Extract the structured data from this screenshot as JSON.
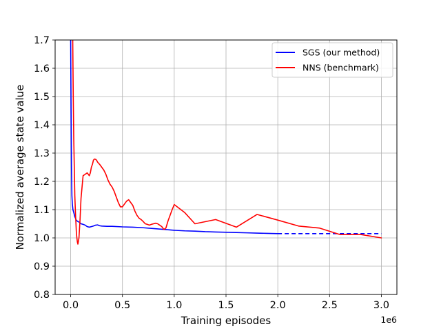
{
  "chart_data": {
    "type": "line",
    "xlabel": "Training episodes",
    "ylabel": "Normalized average state value",
    "x_offset_label": "1e6",
    "xlim": [
      -150000,
      3150000
    ],
    "ylim": [
      0.8,
      1.7
    ],
    "xticks": [
      0,
      500000,
      1000000,
      1500000,
      2000000,
      2500000,
      3000000
    ],
    "xtick_labels": [
      "0.0",
      "0.5",
      "1.0",
      "1.5",
      "2.0",
      "2.5",
      "3.0"
    ],
    "yticks": [
      0.8,
      0.9,
      1.0,
      1.1,
      1.2,
      1.3,
      1.4,
      1.5,
      1.6,
      1.7
    ],
    "ytick_labels": [
      "0.8",
      "0.9",
      "1.0",
      "1.1",
      "1.2",
      "1.3",
      "1.4",
      "1.5",
      "1.6",
      "1.7"
    ],
    "grid": true,
    "legend_position": "top-right",
    "series": [
      {
        "name": "SGS (our method)",
        "color": "#0000ff",
        "x": [
          0,
          4000,
          8000,
          12000,
          16000,
          22000,
          30000,
          40000,
          55000,
          70000,
          85000,
          100000,
          120000,
          140000,
          160000,
          180000,
          200000,
          220000,
          240000,
          260000,
          280000,
          300000,
          350000,
          400000,
          500000,
          600000,
          700000,
          800000,
          900000,
          1000000,
          1100000,
          1200000,
          1300000,
          1400000,
          1500000,
          1600000,
          1700000,
          1800000,
          1900000,
          2000000
        ],
        "y": [
          1.7,
          1.45,
          1.25,
          1.15,
          1.12,
          1.1,
          1.09,
          1.075,
          1.062,
          1.058,
          1.055,
          1.05,
          1.048,
          1.045,
          1.04,
          1.038,
          1.04,
          1.042,
          1.045,
          1.046,
          1.043,
          1.042,
          1.041,
          1.041,
          1.039,
          1.038,
          1.036,
          1.033,
          1.03,
          1.027,
          1.025,
          1.024,
          1.022,
          1.021,
          1.02,
          1.019,
          1.018,
          1.017,
          1.016,
          1.015
        ]
      },
      {
        "name": "SGS (our method)",
        "color": "#0000ff",
        "dashed": true,
        "x": [
          2000000,
          2500000,
          3000000
        ],
        "y": [
          1.015,
          1.015,
          1.015
        ]
      },
      {
        "name": "NNS (benchmark)",
        "color": "#ff0000",
        "x": [
          20000,
          25000,
          30000,
          35000,
          40000,
          45000,
          50000,
          55000,
          60000,
          65000,
          70000,
          80000,
          90000,
          100000,
          110000,
          120000,
          140000,
          160000,
          180000,
          190000,
          200000,
          210000,
          220000,
          230000,
          240000,
          250000,
          260000,
          280000,
          300000,
          320000,
          340000,
          360000,
          380000,
          400000,
          420000,
          440000,
          460000,
          480000,
          500000,
          520000,
          540000,
          560000,
          580000,
          600000,
          620000,
          640000,
          660000,
          680000,
          700000,
          720000,
          740000,
          760000,
          780000,
          800000,
          820000,
          840000,
          860000,
          880000,
          900000,
          920000,
          940000,
          960000,
          980000,
          1000000,
          1100000,
          1200000,
          1400000,
          1600000,
          1800000,
          2000000,
          2200000,
          2400000,
          2600000,
          2800000,
          3000000
        ],
        "y": [
          1.7,
          1.5,
          1.35,
          1.25,
          1.15,
          1.1,
          1.06,
          1.02,
          1.0,
          0.985,
          0.978,
          1.0,
          1.06,
          1.14,
          1.18,
          1.22,
          1.225,
          1.23,
          1.22,
          1.23,
          1.25,
          1.26,
          1.275,
          1.279,
          1.278,
          1.275,
          1.268,
          1.26,
          1.25,
          1.24,
          1.225,
          1.205,
          1.19,
          1.18,
          1.165,
          1.145,
          1.125,
          1.11,
          1.11,
          1.12,
          1.13,
          1.135,
          1.125,
          1.115,
          1.095,
          1.08,
          1.07,
          1.065,
          1.058,
          1.05,
          1.048,
          1.045,
          1.048,
          1.05,
          1.052,
          1.05,
          1.045,
          1.04,
          1.03,
          1.035,
          1.06,
          1.08,
          1.1,
          1.118,
          1.09,
          1.05,
          1.065,
          1.038,
          1.083,
          1.063,
          1.042,
          1.035,
          1.012,
          1.012,
          1.0
        ]
      }
    ]
  }
}
